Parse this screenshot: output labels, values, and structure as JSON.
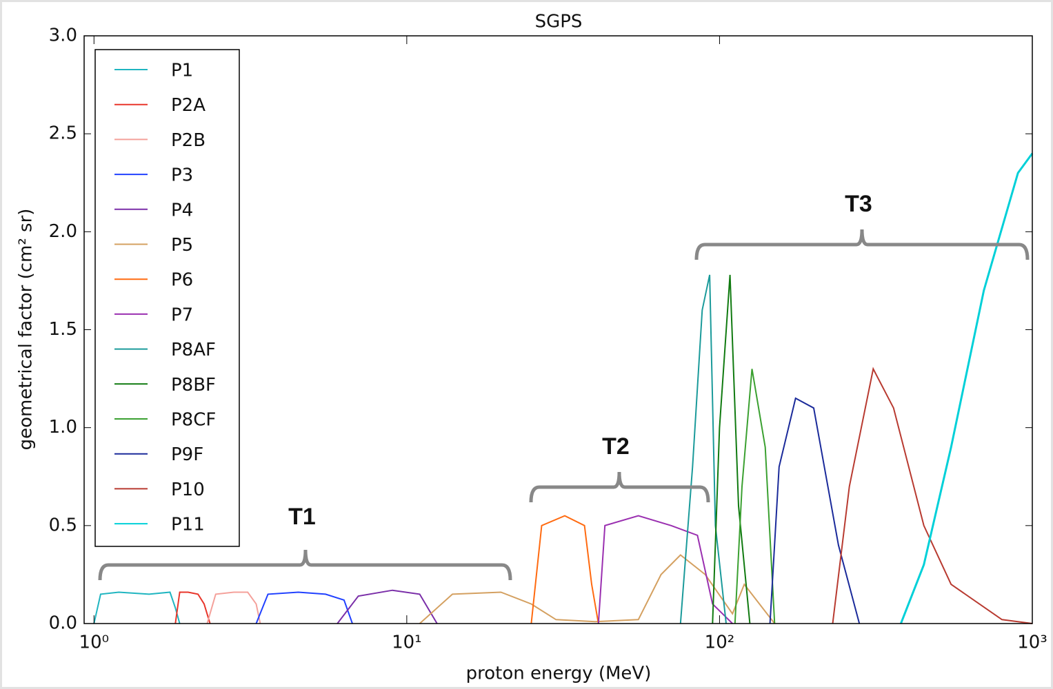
{
  "chart_data": {
    "type": "line",
    "title": "SGPS",
    "xlabel": "proton energy (MeV)",
    "ylabel": "geometrical factor (cm² sr)",
    "xscale": "log",
    "xlim": [
      0.93,
      1000
    ],
    "xticks": [
      {
        "value": 1,
        "label": "10⁰"
      },
      {
        "value": 10,
        "label": "10¹"
      },
      {
        "value": 100,
        "label": "10²"
      },
      {
        "value": 1000,
        "label": "10³"
      }
    ],
    "ylim": [
      0,
      3
    ],
    "yticks": [
      {
        "value": 0,
        "label": "0.0"
      },
      0.5,
      {
        "value": 1,
        "label": "1.0"
      },
      1.5,
      {
        "value": 2,
        "label": "2.0"
      },
      2.5,
      {
        "value": 3,
        "label": "3.0"
      }
    ],
    "grid": false,
    "legend": "upper left",
    "annotations": [
      "T1",
      "T2",
      "T3"
    ],
    "series": [
      {
        "name": "P1",
        "color": "#1fb5c0",
        "x": [
          1.0,
          1.05,
          1.2,
          1.5,
          1.75,
          1.82,
          1.88
        ],
        "values": [
          0,
          0.15,
          0.16,
          0.15,
          0.16,
          0.08,
          0
        ]
      },
      {
        "name": "P2A",
        "color": "#e8352a",
        "x": [
          1.82,
          1.88,
          2.0,
          2.15,
          2.25,
          2.35
        ],
        "values": [
          0,
          0.16,
          0.16,
          0.15,
          0.1,
          0
        ]
      },
      {
        "name": "P2B",
        "color": "#f4a09a",
        "x": [
          2.3,
          2.45,
          2.8,
          3.1,
          3.3,
          3.4
        ],
        "values": [
          0,
          0.15,
          0.16,
          0.16,
          0.1,
          0
        ]
      },
      {
        "name": "P3",
        "color": "#2040ff",
        "x": [
          3.3,
          3.6,
          4.5,
          5.5,
          6.3,
          6.7
        ],
        "values": [
          0,
          0.15,
          0.16,
          0.15,
          0.12,
          0
        ]
      },
      {
        "name": "P4",
        "color": "#7a2ea8",
        "x": [
          6.0,
          7.0,
          9.0,
          11.0,
          12.5
        ],
        "values": [
          0,
          0.14,
          0.17,
          0.15,
          0
        ]
      },
      {
        "name": "P5",
        "color": "#d4a060",
        "x": [
          11,
          14,
          20,
          25,
          30,
          40,
          55,
          65,
          75,
          90,
          110,
          120,
          150
        ],
        "values": [
          0,
          0.15,
          0.16,
          0.1,
          0.02,
          0.01,
          0.02,
          0.25,
          0.35,
          0.25,
          0.05,
          0.2,
          0
        ]
      },
      {
        "name": "P6",
        "color": "#ff6a10",
        "x": [
          25,
          27,
          32,
          37,
          39,
          41
        ],
        "values": [
          0,
          0.5,
          0.55,
          0.5,
          0.2,
          0
        ]
      },
      {
        "name": "P7",
        "color": "#9a2fb0",
        "x": [
          41,
          43,
          55,
          70,
          85,
          95,
          110
        ],
        "values": [
          0,
          0.5,
          0.55,
          0.5,
          0.45,
          0.1,
          0
        ]
      },
      {
        "name": "P8AF",
        "color": "#1a9a9a",
        "x": [
          75,
          82,
          88,
          93,
          97,
          105
        ],
        "values": [
          0,
          0.8,
          1.6,
          1.78,
          0.5,
          0
        ]
      },
      {
        "name": "P8BF",
        "color": "#107a10",
        "x": [
          95,
          100,
          108,
          115,
          125
        ],
        "values": [
          0,
          1.0,
          1.78,
          0.6,
          0
        ]
      },
      {
        "name": "P8CF",
        "color": "#3aa030",
        "x": [
          112,
          118,
          127,
          140,
          150
        ],
        "values": [
          0,
          0.7,
          1.3,
          0.9,
          0
        ]
      },
      {
        "name": "P9F",
        "color": "#1a2a9a",
        "x": [
          145,
          155,
          175,
          200,
          240,
          280
        ],
        "values": [
          0,
          0.8,
          1.15,
          1.1,
          0.4,
          0
        ]
      },
      {
        "name": "P10",
        "color": "#b83a30",
        "x": [
          230,
          260,
          310,
          360,
          450,
          550,
          800,
          1000
        ],
        "values": [
          0,
          0.7,
          1.3,
          1.1,
          0.5,
          0.2,
          0.02,
          0
        ]
      },
      {
        "name": "P11",
        "color": "#00d0d8",
        "x": [
          380,
          450,
          550,
          700,
          900,
          1000
        ],
        "values": [
          0,
          0.3,
          0.9,
          1.7,
          2.3,
          2.4
        ]
      }
    ]
  }
}
